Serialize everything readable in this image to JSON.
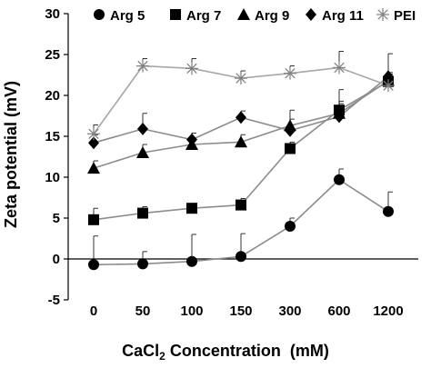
{
  "chart_data": {
    "type": "line",
    "ylabel": "Zeta potential (mV)",
    "xlabel_main": "CaCl",
    "xlabel_sub": "2",
    "xlabel_rest": " Concentration  (mM)",
    "categories": [
      "0",
      "50",
      "100",
      "150",
      "300",
      "600",
      "1200"
    ],
    "ylim": [
      -5,
      30
    ],
    "yticks": [
      -5,
      0,
      5,
      10,
      15,
      20,
      25,
      30
    ],
    "grid": false,
    "legend_position": "top",
    "series": [
      {
        "name": "Arg 5",
        "marker": "circle",
        "line_color": "#8c8c8c",
        "values": [
          -0.7,
          -0.6,
          -0.3,
          0.3,
          4.0,
          9.7,
          5.8
        ],
        "errors": [
          3.5,
          1.5,
          3.3,
          2.8,
          1.0,
          1.3,
          2.4
        ]
      },
      {
        "name": "Arg 7",
        "marker": "square",
        "line_color": "#8c8c8c",
        "values": [
          4.8,
          5.6,
          6.2,
          6.6,
          13.5,
          18.2,
          21.7
        ],
        "errors": [
          1.4,
          0.8,
          0.6,
          0.8,
          0.8,
          2.5,
          0.9
        ]
      },
      {
        "name": "Arg 9",
        "marker": "triangle",
        "line_color": "#8c8c8c",
        "values": [
          11.1,
          13.0,
          14.0,
          14.3,
          16.3,
          17.8,
          21.8
        ],
        "errors": [
          0.9,
          1.0,
          0.7,
          0.9,
          0.8,
          1.2,
          1.0
        ]
      },
      {
        "name": "Arg 11",
        "marker": "diamond",
        "line_color": "#8c8c8c",
        "values": [
          14.2,
          15.9,
          14.6,
          17.3,
          15.7,
          17.4,
          22.3
        ],
        "errors": [
          1.0,
          1.9,
          0.8,
          0.8,
          2.5,
          1.9,
          2.8
        ]
      },
      {
        "name": "PEI",
        "marker": "asterisk",
        "line_color": "#a6a6a6",
        "values": [
          15.3,
          23.6,
          23.3,
          22.1,
          22.7,
          23.4,
          21.2
        ],
        "errors": [
          1.1,
          0.9,
          1.2,
          0.9,
          0.9,
          2.0,
          0.7
        ]
      }
    ]
  }
}
